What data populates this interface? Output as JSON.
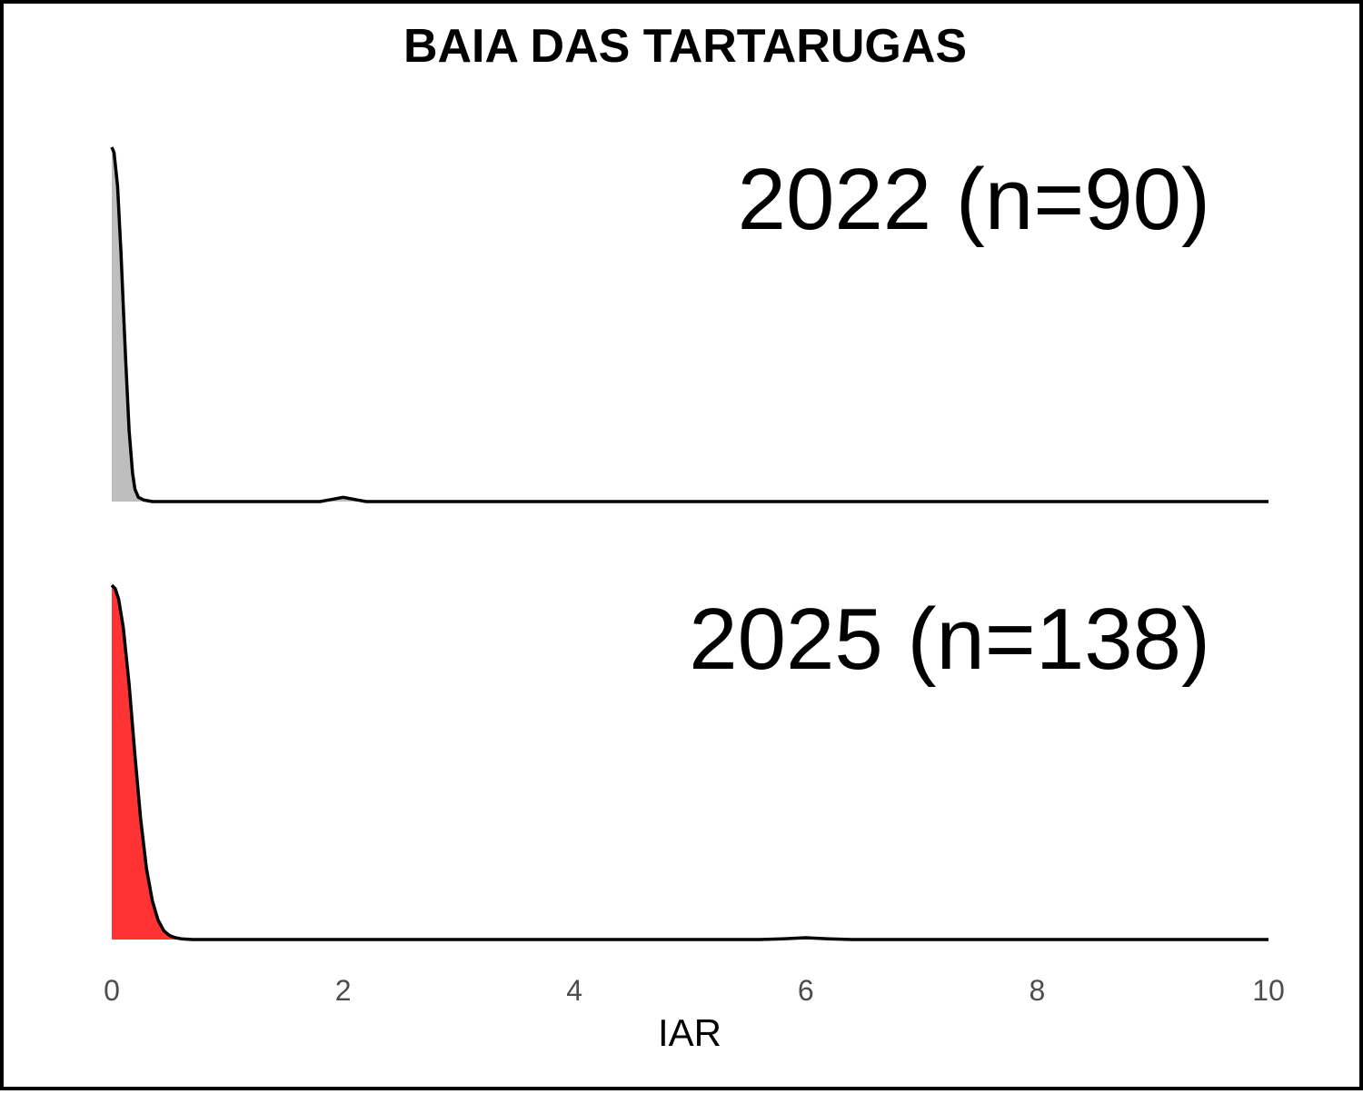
{
  "chart_data": {
    "type": "area",
    "subtype": "ridgeline-density",
    "title": "BAIA DAS TARTARUGAS",
    "xlabel": "IAR",
    "ylabel": "",
    "xlim": [
      0,
      10
    ],
    "xticks": [
      0,
      2,
      4,
      6,
      8,
      10
    ],
    "xtick_labels": [
      "0",
      "2",
      "4",
      "6",
      "8",
      "10"
    ],
    "grid": false,
    "legend": "none",
    "series": [
      {
        "name": "2022 (n=90)",
        "fill": "#bebebe",
        "outline": "#000000",
        "density_points": [
          [
            0,
            1.0
          ],
          [
            0.02,
            0.985
          ],
          [
            0.05,
            0.89
          ],
          [
            0.08,
            0.7
          ],
          [
            0.1,
            0.55
          ],
          [
            0.12,
            0.4
          ],
          [
            0.15,
            0.2
          ],
          [
            0.18,
            0.08
          ],
          [
            0.2,
            0.035
          ],
          [
            0.23,
            0.012
          ],
          [
            0.28,
            0.004
          ],
          [
            0.35,
            0.0
          ],
          [
            1.8,
            0.0
          ],
          [
            1.9,
            0.006
          ],
          [
            2.0,
            0.012
          ],
          [
            2.1,
            0.006
          ],
          [
            2.2,
            0.0
          ],
          [
            10,
            0.0
          ]
        ]
      },
      {
        "name": "2025 (n=138)",
        "fill": "#ff3333",
        "outline": "#000000",
        "density_points": [
          [
            0,
            1.0
          ],
          [
            0.03,
            0.99
          ],
          [
            0.06,
            0.96
          ],
          [
            0.1,
            0.88
          ],
          [
            0.15,
            0.72
          ],
          [
            0.2,
            0.52
          ],
          [
            0.25,
            0.34
          ],
          [
            0.3,
            0.2
          ],
          [
            0.35,
            0.11
          ],
          [
            0.4,
            0.055
          ],
          [
            0.45,
            0.025
          ],
          [
            0.5,
            0.011
          ],
          [
            0.55,
            0.005
          ],
          [
            0.6,
            0.002
          ],
          [
            0.7,
            0.0
          ],
          [
            5.6,
            0.0
          ],
          [
            5.8,
            0.002
          ],
          [
            6.0,
            0.005
          ],
          [
            6.2,
            0.002
          ],
          [
            6.4,
            0.0
          ],
          [
            10,
            0.0
          ]
        ]
      }
    ]
  }
}
